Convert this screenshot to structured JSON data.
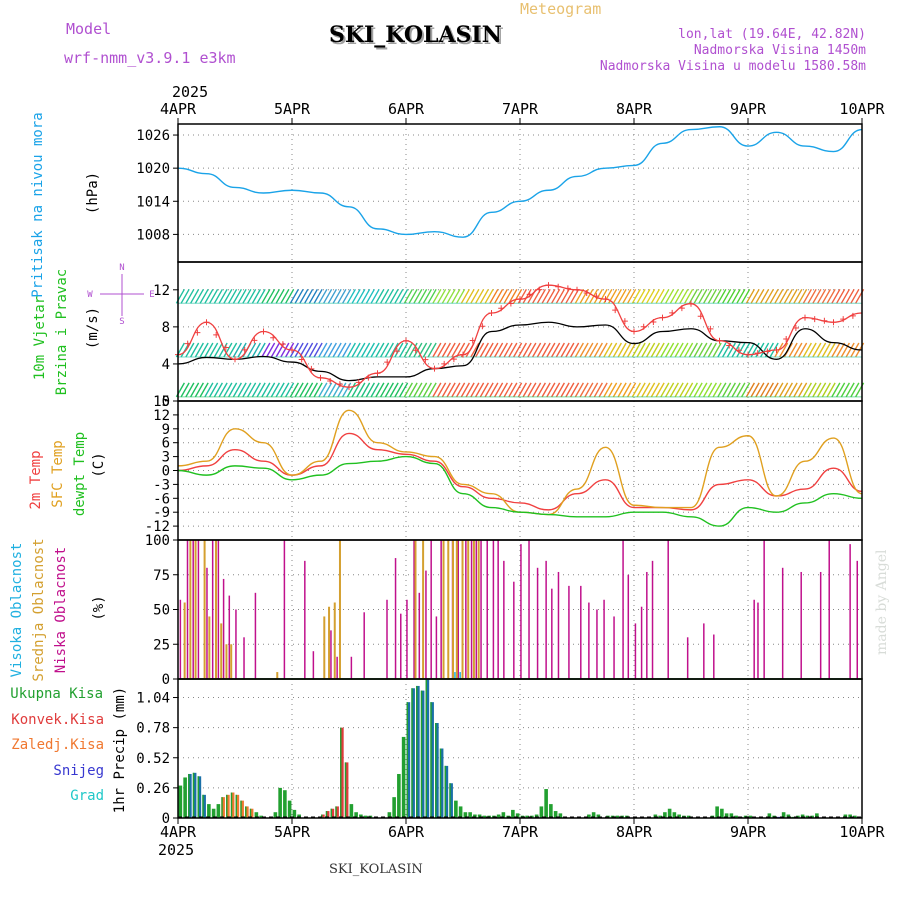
{
  "header": {
    "model_label": "Model",
    "model_name": "wrf-nmm_v3.9.1 e3km",
    "station": "SKI_KOLASIN",
    "title": "Meteogram",
    "coords": "lon,lat (19.64E, 42.82N)",
    "altitude": "Nadmorska Visina 1450m",
    "model_altitude": "Nadmorska Visina u modelu 1580.58m",
    "year": "2025",
    "footer_station": "SKI_KOLASIN",
    "credit": "made by Angel"
  },
  "colors": {
    "pressure": "#1aa3e8",
    "temp2m": "#f04040",
    "sfc": "#e0a020",
    "dew": "#20c020",
    "high": "#20b0e0",
    "mid": "#d4a030",
    "low": "#c0108c",
    "total": "#22a030",
    "conv": "#e03c3c",
    "frozen": "#f07830",
    "snow": "#3838d0",
    "hail": "#20c8c8",
    "model": "#b050d0",
    "title_accent": "#e8c070"
  },
  "chart_data": [
    {
      "id": "pressure",
      "type": "line",
      "title": "Pritisak na nivou mora",
      "ylabel": "(hPa)",
      "ylim": [
        1003,
        1028
      ],
      "yticks": [
        1008,
        1014,
        1020,
        1026
      ],
      "xlabels": [
        "4APR",
        "5APR",
        "6APR",
        "7APR",
        "8APR",
        "9APR",
        "10APR"
      ],
      "x_hours": [
        0,
        6,
        12,
        18,
        24,
        30,
        36,
        42,
        48,
        54,
        60,
        66,
        72,
        78,
        84,
        90,
        96,
        102,
        108,
        114,
        120,
        126,
        132,
        138,
        144
      ],
      "values": [
        1020,
        1019,
        1016.5,
        1015.5,
        1016,
        1015.5,
        1013,
        1009,
        1008,
        1008.5,
        1007.5,
        1012,
        1014,
        1016,
        1018.5,
        1020,
        1020.5,
        1024.5,
        1027,
        1027.5,
        1024,
        1026.5,
        1024,
        1023,
        1027
      ]
    },
    {
      "id": "wind",
      "type": "line",
      "title": "10m Vjetar",
      "title2": "Brzina i Pravac",
      "ylabel": "(m/s)",
      "compass": [
        "N",
        "E",
        "S",
        "W"
      ],
      "ylim": [
        0,
        15
      ],
      "yticks": [
        0,
        4,
        8,
        12
      ],
      "x_hours": [
        0,
        6,
        12,
        18,
        24,
        30,
        36,
        42,
        48,
        54,
        60,
        66,
        72,
        78,
        84,
        90,
        96,
        102,
        108,
        114,
        120,
        126,
        132,
        138,
        144
      ],
      "series": [
        {
          "name": "Speed",
          "color": "#000000",
          "values": [
            4,
            4.7,
            4.5,
            4.8,
            4.2,
            3.2,
            2.2,
            2.6,
            2.6,
            3.5,
            3.8,
            7.5,
            8.2,
            8.5,
            8,
            8.2,
            6.2,
            7.5,
            7.8,
            6.5,
            6.3,
            4.5,
            7.8,
            6.3,
            5.5
          ]
        },
        {
          "name": "Gust",
          "color": "#f04040",
          "values": [
            5,
            8.5,
            4.5,
            7.5,
            5.5,
            2.5,
            1.5,
            3,
            6.5,
            3.5,
            5,
            9.5,
            11,
            12.5,
            12,
            11,
            7.5,
            9,
            10.5,
            6.5,
            5,
            5.5,
            9,
            8.5,
            9.5
          ]
        }
      ],
      "barb_rows": [
        {
          "level": 11.3,
          "colors": [
            "#20c0a0",
            "#20c0a0",
            "#20c0a0",
            "#20c060",
            "#2080c0",
            "#40a0d0",
            "#20c0c0",
            "#20c0a0",
            "#50d050",
            "#90e040",
            "#e0c020",
            "#f08020",
            "#f06040",
            "#f06040",
            "#f0a020",
            "#f0a020",
            "#e0d020",
            "#a0e030",
            "#70d040",
            "#50d030",
            "#e0a020",
            "#e0a020",
            "#f07040",
            "#f06040",
            "#f06040"
          ]
        },
        {
          "level": 5.5,
          "colors": [
            "#20c0a0",
            "#20c0a0",
            "#20b0b0",
            "#8030e0",
            "#5050e0",
            "#40a0e0",
            "#20c0b0",
            "#20c0a0",
            "#30c080",
            "#f06040",
            "#f06040",
            "#f06040",
            "#f06040",
            "#f06040",
            "#f09030",
            "#e0c020",
            "#c0d020",
            "#90e030",
            "#70d040",
            "#20c0a0",
            "#20c0a0",
            "#f09030",
            "#e0c020",
            "#f09030",
            "#f09030"
          ]
        },
        {
          "level": 1.2,
          "colors": [
            "#20c060",
            "#20c0a0",
            "#20c0a0",
            "#20c0a0",
            "#20c060",
            "#40b0d0",
            "#20c080",
            "#20c060",
            "#60d040",
            "#f06040",
            "#f06040",
            "#f06040",
            "#f06040",
            "#f06040",
            "#f07040",
            "#f0a020",
            "#e0c020",
            "#c0d020",
            "#90e030",
            "#60d040",
            "#e08020",
            "#e0a020",
            "#b0d020",
            "#50d040",
            "#30c040"
          ]
        }
      ]
    },
    {
      "id": "temperature",
      "type": "line",
      "title": "2m Temp",
      "title2": "SFC Temp",
      "title3": "dewpt Temp",
      "ylabel": "(C)",
      "ylim": [
        -15,
        15
      ],
      "yticks": [
        -12,
        -9,
        -6,
        -3,
        0,
        3,
        6,
        9,
        12,
        15
      ],
      "x_hours": [
        0,
        6,
        12,
        18,
        24,
        30,
        36,
        42,
        48,
        54,
        60,
        66,
        72,
        78,
        84,
        90,
        96,
        102,
        108,
        114,
        120,
        126,
        132,
        138,
        144
      ],
      "series": [
        {
          "name": "2m Temp",
          "color": "#f04040",
          "values": [
            0,
            1,
            4.5,
            2,
            -1,
            1,
            8,
            4.5,
            3.5,
            2,
            -3.5,
            -6,
            -7,
            -8.5,
            -5,
            -2,
            -8,
            -8,
            -8.5,
            -3,
            -2,
            -5.5,
            -4,
            0.5,
            -4.5
          ]
        },
        {
          "name": "SFC Temp",
          "color": "#e0a020",
          "values": [
            1,
            2,
            9,
            6,
            -1,
            2,
            13,
            6,
            4,
            3,
            -3,
            -5,
            -9,
            -9.5,
            -4,
            5,
            -7.5,
            -8,
            -8,
            5,
            7.5,
            -5.5,
            2,
            7,
            -5
          ]
        },
        {
          "name": "dewpt Temp",
          "color": "#20c020",
          "values": [
            0,
            -1,
            1,
            0.5,
            -2,
            -1,
            1.5,
            2,
            3,
            1.5,
            -5,
            -8,
            -9,
            -9.5,
            -10,
            -10,
            -9,
            -9,
            -10,
            -12,
            -8,
            -9,
            -7,
            -5,
            -6
          ]
        }
      ]
    },
    {
      "id": "clouds",
      "type": "bar",
      "title": "Visoka Oblacnost",
      "title2": "Srednja Oblacnost",
      "title3": "Niska Oblacnost",
      "ylabel": "(%)",
      "ylim": [
        0,
        100
      ],
      "yticks": [
        0,
        25,
        50,
        75,
        100
      ],
      "series": [
        {
          "name": "Niska",
          "color": "#c0108c",
          "hours": [
            0.5,
            2,
            3.2,
            4.3,
            6.1,
            7.3,
            8.5,
            9.6,
            10.8,
            12.2,
            13.9,
            16.3,
            22.4,
            26.7,
            28.5,
            32.2,
            33.5,
            36.5,
            39.2,
            44,
            45.8,
            46.9,
            48.2,
            49.7,
            50.8,
            52.2,
            53.3,
            54.4,
            55.4,
            57.8,
            59,
            60.6,
            61.8,
            62.8,
            63.8,
            65.1,
            66.4,
            67.4,
            68.6,
            70.7,
            72.2,
            73.9,
            75.7,
            77.5,
            78.7,
            80.1,
            82.3,
            84.8,
            86.5,
            88.2,
            89.7,
            91.8,
            93.7,
            94.8,
            96.3,
            97.6,
            98.7,
            99.9,
            103.2,
            107.3,
            110.7,
            112.8,
            121.3,
            122.1,
            123.4,
            127.3,
            131.2,
            135.3,
            137.1,
            141.5,
            143
          ],
          "values": [
            57,
            100,
            100,
            100,
            80,
            100,
            100,
            72,
            60,
            50,
            30,
            62,
            100,
            85,
            20,
            35,
            16,
            16,
            48,
            57,
            87,
            47,
            57,
            100,
            62,
            78,
            100,
            45,
            100,
            100,
            100,
            100,
            100,
            100,
            100,
            100,
            100,
            100,
            85,
            70,
            97,
            100,
            80,
            85,
            65,
            77,
            67,
            67,
            55,
            50,
            57,
            45,
            100,
            75,
            40,
            52,
            77,
            85,
            100,
            30,
            40,
            32,
            57,
            55,
            100,
            80,
            77,
            77,
            100,
            97,
            85
          ]
        },
        {
          "name": "Srednja",
          "color": "#d4a030",
          "hours": [
            1.4,
            2.6,
            3.7,
            5.6,
            6.6,
            8,
            9.1,
            10.2,
            11.2,
            20.9,
            30.8,
            31.8,
            33,
            34.1,
            50,
            51.6,
            55.9,
            56.9,
            57.9,
            58.7,
            59.9,
            61.1,
            62.3,
            63.3
          ],
          "values": [
            55,
            100,
            100,
            100,
            45,
            100,
            40,
            25,
            25,
            5,
            45,
            52,
            55,
            100,
            100,
            100,
            100,
            100,
            100,
            100,
            100,
            100,
            100,
            100
          ]
        },
        {
          "name": "Visoka",
          "color": "#20b0e0",
          "hours": [
            58.3,
            59.4
          ],
          "values": [
            5,
            5
          ]
        }
      ]
    },
    {
      "id": "precip",
      "type": "bar",
      "ylabel": "1hr Precip (mm)",
      "legend": [
        "Ukupna Kisa",
        "Konvek.Kisa",
        "Zaledj.Kisa",
        "Snijeg",
        "Grad"
      ],
      "ylim": [
        0,
        1.2
      ],
      "yticks": [
        0,
        0.26,
        0.52,
        0.78,
        1.04
      ],
      "yticklabels": [
        "0",
        "0.26",
        "0.52",
        "0.78",
        "1.04"
      ],
      "xlabels": [
        "4APR",
        "5APR",
        "6APR",
        "7APR",
        "8APR",
        "9APR",
        "10APR"
      ],
      "hours": [
        0,
        1,
        2,
        3,
        4,
        5,
        6,
        7,
        8,
        9,
        10,
        11,
        12,
        13,
        14,
        15,
        16,
        17,
        20,
        21,
        22,
        23,
        24,
        25,
        30,
        31,
        32,
        33,
        34,
        35,
        36,
        37,
        38,
        39,
        40,
        44,
        45,
        46,
        47,
        48,
        49,
        50,
        51,
        52,
        53,
        54,
        55,
        56,
        57,
        58,
        59,
        60,
        61,
        62,
        63,
        64,
        65,
        66,
        67,
        68,
        69,
        70,
        71,
        72,
        73,
        74,
        75,
        76,
        77,
        78,
        79,
        80,
        86,
        87,
        88,
        90,
        91,
        92,
        93,
        94,
        100,
        101,
        102,
        103,
        104,
        105,
        106,
        107,
        112,
        113,
        114,
        115,
        116,
        117,
        118,
        119,
        120,
        124,
        125,
        126,
        127,
        128,
        129,
        130,
        131,
        132,
        133,
        134,
        140,
        141,
        142,
        143
      ],
      "values": [
        0.28,
        0.35,
        0.38,
        0.39,
        0.36,
        0.2,
        0.12,
        0.08,
        0.12,
        0.18,
        0.2,
        0.22,
        0.2,
        0.15,
        0.1,
        0.08,
        0.05,
        0.02,
        0.05,
        0.26,
        0.24,
        0.15,
        0.07,
        0.03,
        0.03,
        0.06,
        0.08,
        0.1,
        0.78,
        0.48,
        0.12,
        0.05,
        0.03,
        0.02,
        0.02,
        0.05,
        0.18,
        0.38,
        0.7,
        1.0,
        1.12,
        1.14,
        1.1,
        1.2,
        1.0,
        0.82,
        0.6,
        0.45,
        0.3,
        0.15,
        0.1,
        0.05,
        0.05,
        0.03,
        0.03,
        0.02,
        0.02,
        0.02,
        0.03,
        0.05,
        0.02,
        0.07,
        0.04,
        0.02,
        0.02,
        0.02,
        0.03,
        0.1,
        0.25,
        0.12,
        0.06,
        0.04,
        0.03,
        0.05,
        0.03,
        0.02,
        0.02,
        0.02,
        0.02,
        0.02,
        0.03,
        0.02,
        0.05,
        0.08,
        0.05,
        0.03,
        0.02,
        0.02,
        0.02,
        0.1,
        0.08,
        0.04,
        0.04,
        0.02,
        0.01,
        0.02,
        0.02,
        0.04,
        0.02,
        0.01,
        0.05,
        0.03,
        0.01,
        0.02,
        0.03,
        0.02,
        0.02,
        0.04,
        0.03,
        0.03,
        0.02,
        0.01
      ],
      "type_codes": [
        "t",
        "t",
        "s",
        "s",
        "s",
        "s",
        "t",
        "t",
        "t",
        "f",
        "f",
        "f",
        "f",
        "f",
        "f",
        "f",
        "t",
        "t",
        "t",
        "t",
        "t",
        "t",
        "t",
        "t",
        "c",
        "c",
        "c",
        "c",
        "c",
        "c",
        "t",
        "t",
        "t",
        "t",
        "t",
        "t",
        "t",
        "t",
        "t",
        "s",
        "s",
        "s",
        "s",
        "s",
        "s",
        "s",
        "s",
        "s",
        "s",
        "t",
        "t",
        "t",
        "t",
        "t",
        "t",
        "t",
        "t",
        "t",
        "t",
        "t",
        "t",
        "t",
        "t",
        "t",
        "t",
        "t",
        "t",
        "t",
        "t",
        "t",
        "t",
        "t",
        "t",
        "t",
        "t",
        "t",
        "t",
        "t",
        "t",
        "t",
        "t",
        "t",
        "t",
        "t",
        "t",
        "t",
        "t",
        "t",
        "t",
        "t",
        "t",
        "t",
        "t",
        "t",
        "t",
        "t",
        "t",
        "t",
        "t",
        "n",
        "t",
        "t",
        "t",
        "t",
        "t",
        "t",
        "t",
        "t",
        "t",
        "t",
        "t",
        "t"
      ]
    }
  ]
}
